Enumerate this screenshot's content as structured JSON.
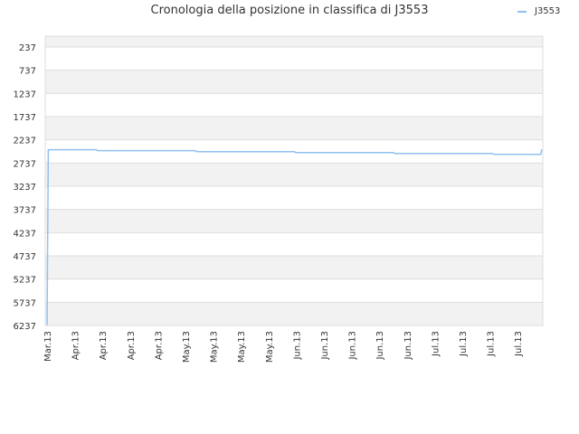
{
  "chart_data": {
    "type": "line",
    "title": "Cronologia della posizione in classifica di J3553",
    "xlabel": "",
    "ylabel": "",
    "y_inverted": true,
    "ylim": [
      6237,
      237
    ],
    "y_ticks": [
      "237",
      "737",
      "1237",
      "1737",
      "2237",
      "2737",
      "3237",
      "3737",
      "4237",
      "4737",
      "5237",
      "5737",
      "6237"
    ],
    "x_ticks": [
      "Mar.13",
      "Apr.13",
      "Apr.13",
      "Apr.13",
      "Apr.13",
      "May.13",
      "May.13",
      "May.13",
      "May.13",
      "Jun.13",
      "Jun.13",
      "Jun.13",
      "Jun.13",
      "Jun.13",
      "Jul.13",
      "Jul.13",
      "Jul.13",
      "Jul.13"
    ],
    "grid": "horizontal, alternating bands",
    "legend_position": "top-right",
    "series": [
      {
        "name": "J3553",
        "color": "#90c0f0",
        "points": [
          [
            0.0,
            6237
          ],
          [
            0.05,
            2450
          ],
          [
            2.0,
            2450
          ],
          [
            2.05,
            2470
          ],
          [
            6.0,
            2470
          ],
          [
            6.05,
            2490
          ],
          [
            10.0,
            2490
          ],
          [
            10.05,
            2510
          ],
          [
            14.0,
            2510
          ],
          [
            14.05,
            2530
          ],
          [
            18.0,
            2530
          ],
          [
            18.05,
            2550
          ],
          [
            19.95,
            2550
          ],
          [
            20.0,
            2440
          ]
        ]
      }
    ]
  }
}
